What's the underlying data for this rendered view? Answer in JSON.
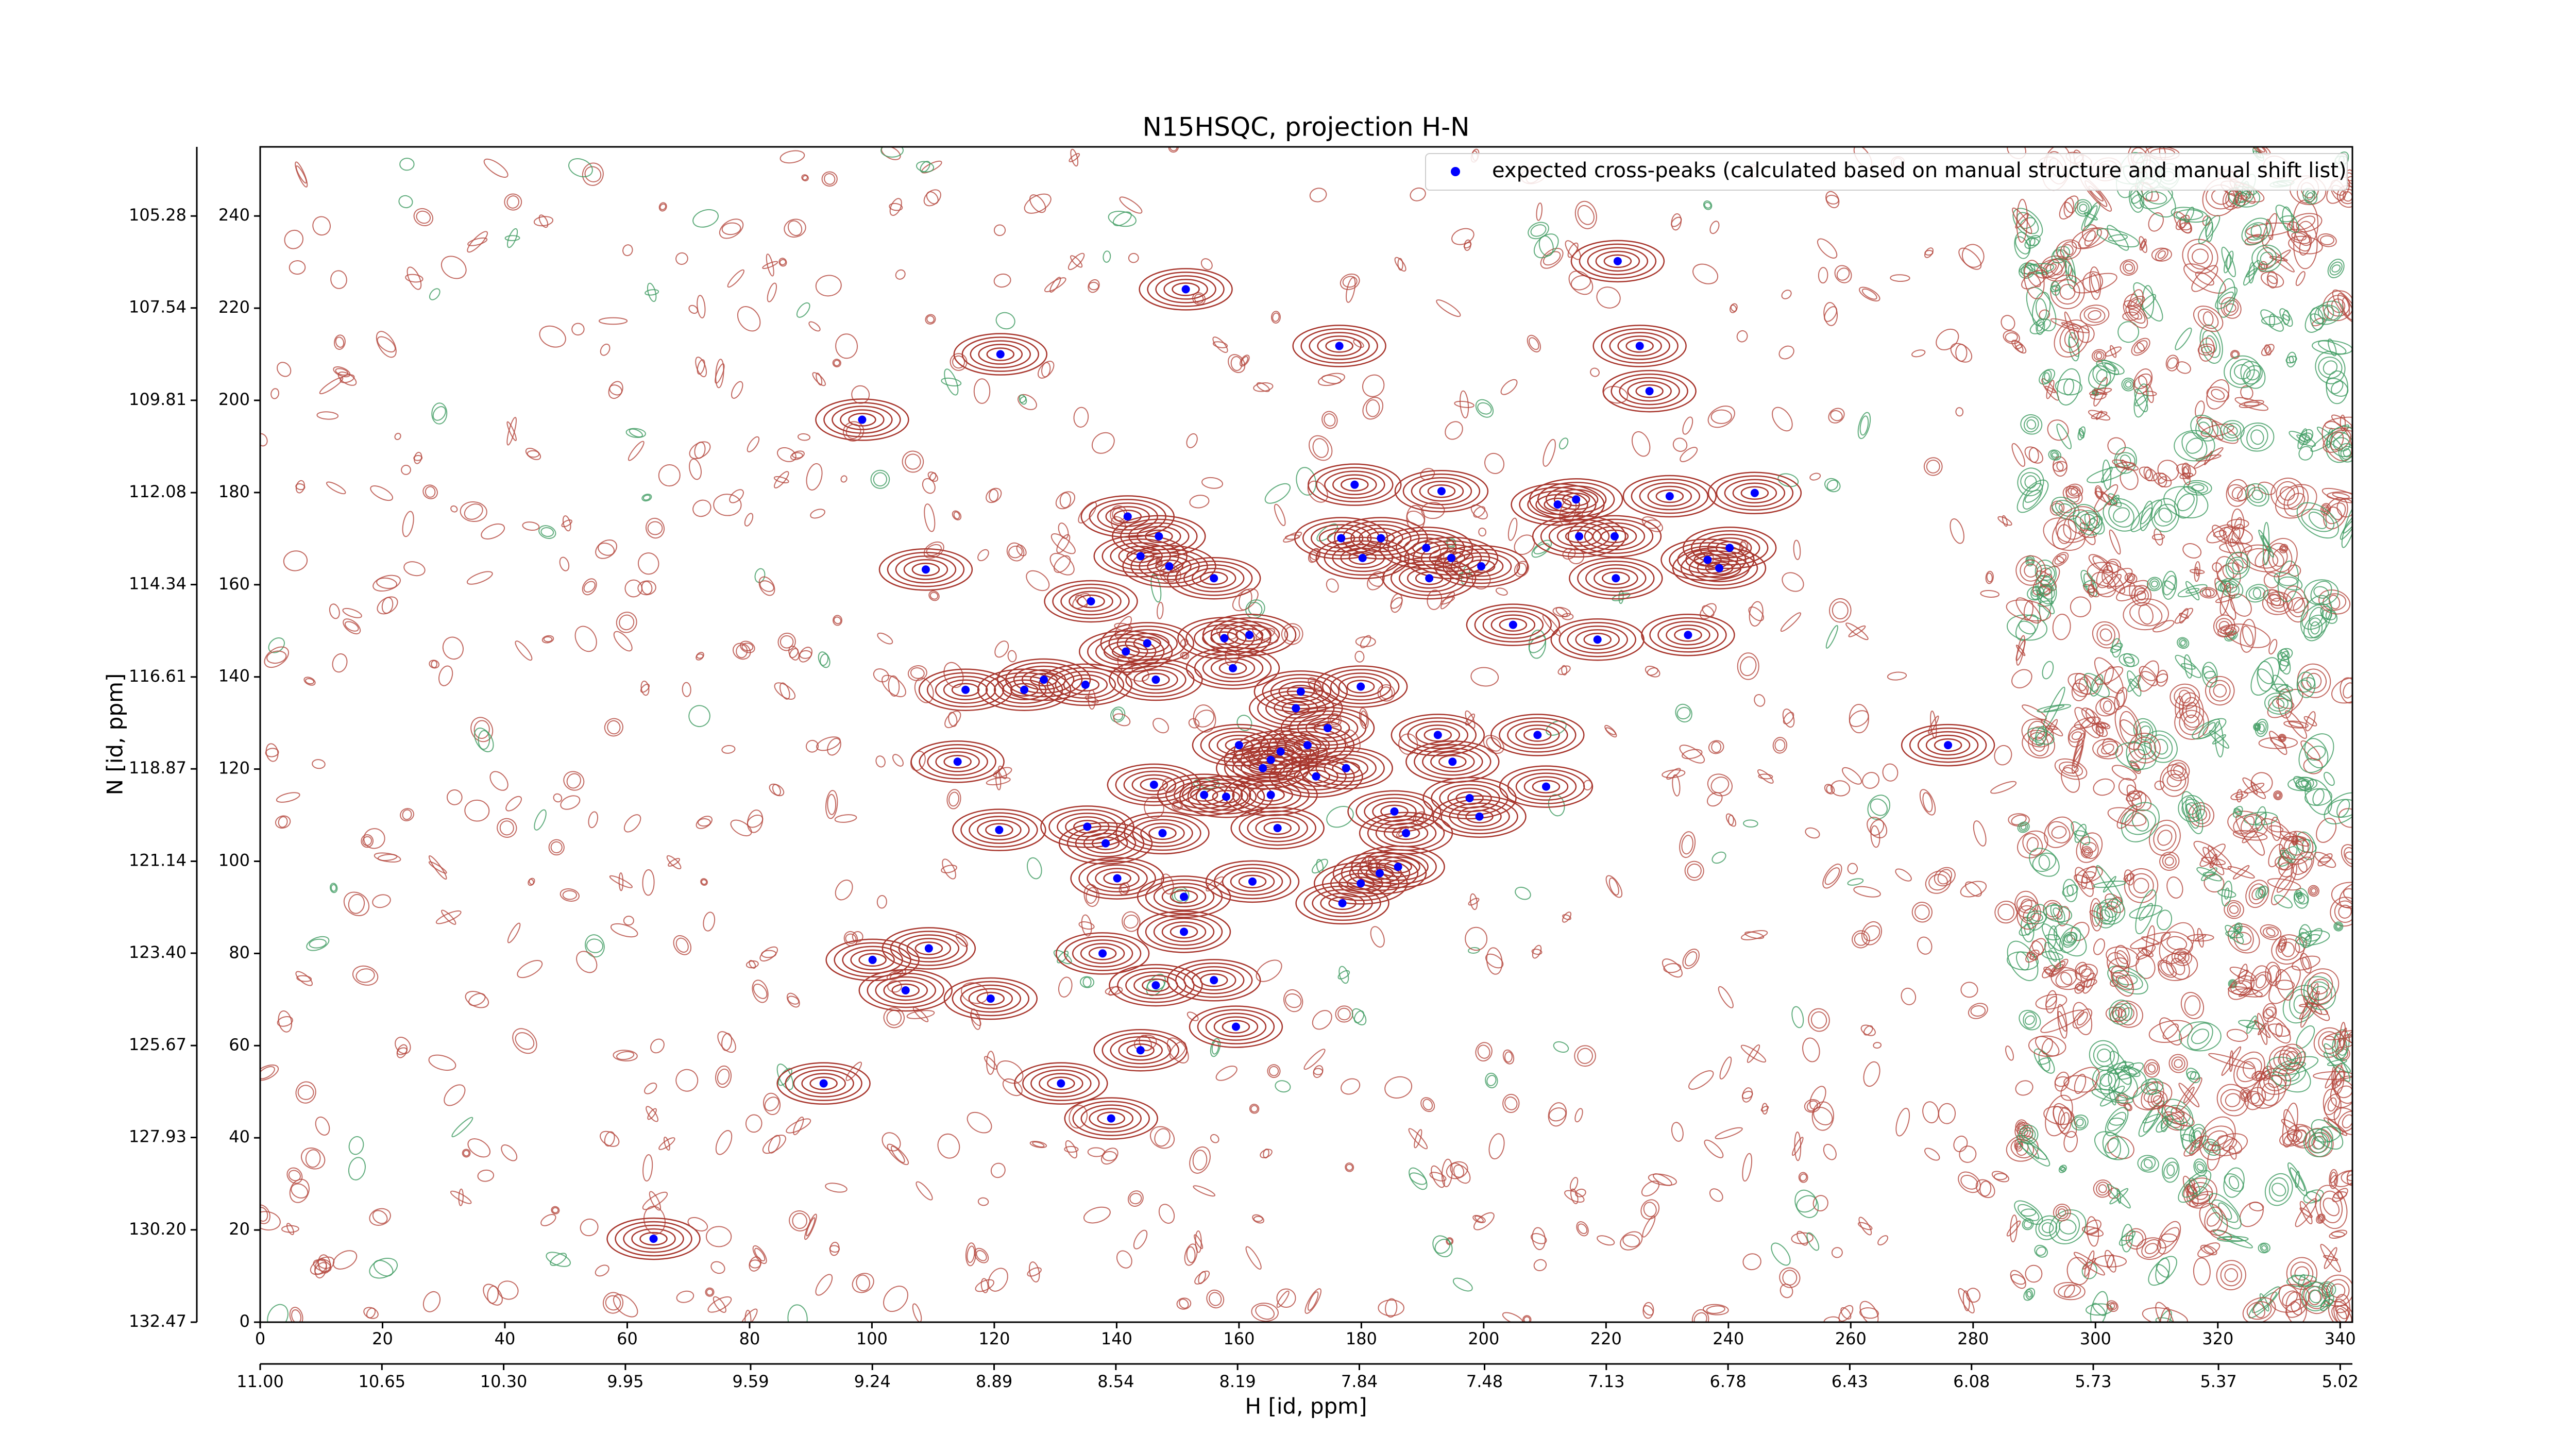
{
  "chart_data": {
    "type": "scatter",
    "title": "N15HSQC, projection H-N",
    "x_label": "H [id, ppm]",
    "y_label": "N [id, ppm]",
    "xlim": [
      0,
      342
    ],
    "ylim": [
      0,
      255
    ],
    "xticks": [
      0,
      20,
      40,
      60,
      80,
      100,
      120,
      140,
      160,
      180,
      200,
      220,
      240,
      260,
      280,
      300,
      320,
      340
    ],
    "yticks": [
      0,
      20,
      40,
      60,
      80,
      100,
      120,
      140,
      160,
      180,
      200,
      220,
      240
    ],
    "x2lim": [
      11.0,
      4.985
    ],
    "x2ticks": [
      {
        "value": 11,
        "label": "11.00"
      },
      10.65,
      {
        "value": 10.3,
        "label": "10.30"
      },
      9.95,
      9.59,
      9.24,
      8.89,
      8.54,
      8.19,
      7.84,
      7.48,
      7.13,
      6.78,
      6.43,
      6.08,
      5.73,
      5.37,
      5.02
    ],
    "y2lim": [
      132.47,
      103.58
    ],
    "y2ticks": [
      132.47,
      {
        "value": 130.2,
        "label": "130.20"
      },
      127.93,
      125.67,
      {
        "value": 123.4,
        "label": "123.40"
      },
      121.14,
      118.87,
      116.61,
      114.34,
      112.08,
      109.81,
      107.54,
      105.28
    ],
    "legend": "upper right",
    "series": [
      {
        "name": "expected cross-peaks (calculated based on manual structure and manual shift list)",
        "color": "#0000ff",
        "x": [
          221.9,
          151.3,
          176.4,
          121.0,
          225.5,
          227.1,
          98.4,
          178.9,
          193.1,
          244.3,
          230.4,
          212.1,
          215.1,
          141.8,
          176.7,
          183.2,
          146.9,
          215.6,
          221.4,
          190.6,
          143.9,
          180.2,
          194.7,
          240.2,
          236.6,
          238.5,
          108.8,
          148.6,
          199.6,
          191.1,
          155.9,
          221.6,
          135.8,
          204.8,
          233.4,
          218.6,
          161.7,
          157.6,
          145.0,
          141.5,
          159.0,
          128.1,
          124.9,
          115.3,
          134.9,
          146.4,
          170.1,
          179.9,
          169.3,
          174.5,
          192.5,
          208.8,
          171.2,
          160.0,
          275.9,
          166.8,
          165.2,
          114.0,
          163.9,
          177.5,
          194.9,
          172.6,
          146.1,
          210.2,
          154.3,
          157.9,
          165.2,
          197.7,
          185.4,
          199.3,
          135.2,
          147.5,
          166.3,
          187.3,
          120.8,
          138.2,
          186.0,
          183.0,
          140.1,
          179.9,
          162.2,
          151.0,
          176.9,
          151.0,
          109.3,
          137.7,
          100.1,
          155.9,
          146.4,
          105.5,
          119.4,
          159.5,
          143.9,
          92.1,
          130.9,
          139.1,
          64.3
        ],
        "y": [
          230.2,
          224.1,
          211.8,
          210.0,
          211.8,
          202.0,
          195.8,
          181.7,
          180.3,
          179.9,
          179.2,
          177.4,
          178.5,
          174.8,
          170.1,
          170.1,
          170.5,
          170.5,
          170.5,
          168.0,
          166.2,
          165.8,
          165.8,
          168.0,
          165.4,
          163.6,
          163.3,
          164.0,
          164.0,
          161.4,
          161.4,
          161.4,
          156.4,
          151.3,
          149.1,
          148.1,
          149.1,
          148.4,
          147.3,
          145.5,
          141.9,
          139.4,
          137.2,
          137.2,
          138.3,
          139.4,
          136.8,
          137.9,
          133.2,
          128.9,
          127.4,
          127.4,
          125.2,
          125.2,
          125.2,
          123.8,
          122.0,
          121.6,
          120.2,
          120.2,
          121.6,
          118.4,
          116.6,
          116.2,
          114.4,
          114.0,
          114.4,
          113.7,
          110.8,
          109.7,
          107.5,
          106.1,
          107.2,
          106.1,
          106.8,
          103.9,
          98.8,
          97.4,
          96.3,
          95.2,
          95.6,
          92.3,
          90.9,
          84.7,
          81.1,
          80.0,
          78.6,
          74.2,
          73.1,
          72.0,
          70.2,
          64.1,
          59.0,
          51.8,
          51.8,
          44.2,
          18.1
        ]
      }
    ]
  }
}
